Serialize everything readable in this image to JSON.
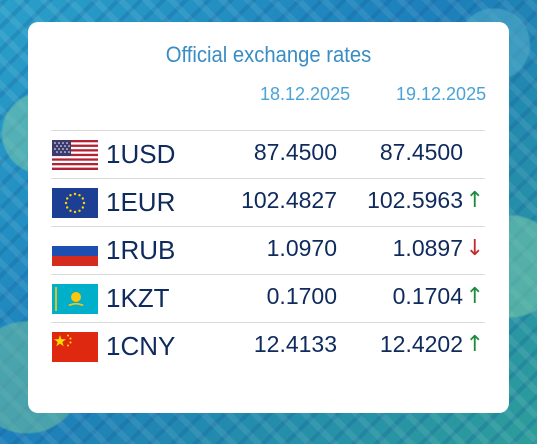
{
  "widget": {
    "title": "Official exchange rates",
    "dates": [
      "18.12.2025",
      "19.12.2025"
    ]
  },
  "colors": {
    "title": "#3a8cc4",
    "date": "#4aa3d6",
    "text": "#0f2a5c",
    "up": "#1e8c3c",
    "down": "#c62b2b"
  },
  "rates": [
    {
      "code": "1USD",
      "flag": "us-flag-icon",
      "rate_1": "87.4500",
      "rate_2": "87.4500",
      "trend": "",
      "trend_dir": "none"
    },
    {
      "code": "1EUR",
      "flag": "eu-flag-icon",
      "rate_1": "102.4827",
      "rate_2": "102.5963",
      "trend": "↑",
      "trend_dir": "up"
    },
    {
      "code": "1RUB",
      "flag": "ru-flag-icon",
      "rate_1": "1.0970",
      "rate_2": "1.0897",
      "trend": "↓",
      "trend_dir": "down"
    },
    {
      "code": "1KZT",
      "flag": "kz-flag-icon",
      "rate_1": "0.1700",
      "rate_2": "0.1704",
      "trend": "↑",
      "trend_dir": "up"
    },
    {
      "code": "1CNY",
      "flag": "cn-flag-icon",
      "rate_1": "12.4133",
      "rate_2": "12.4202",
      "trend": "↑",
      "trend_dir": "up"
    }
  ]
}
